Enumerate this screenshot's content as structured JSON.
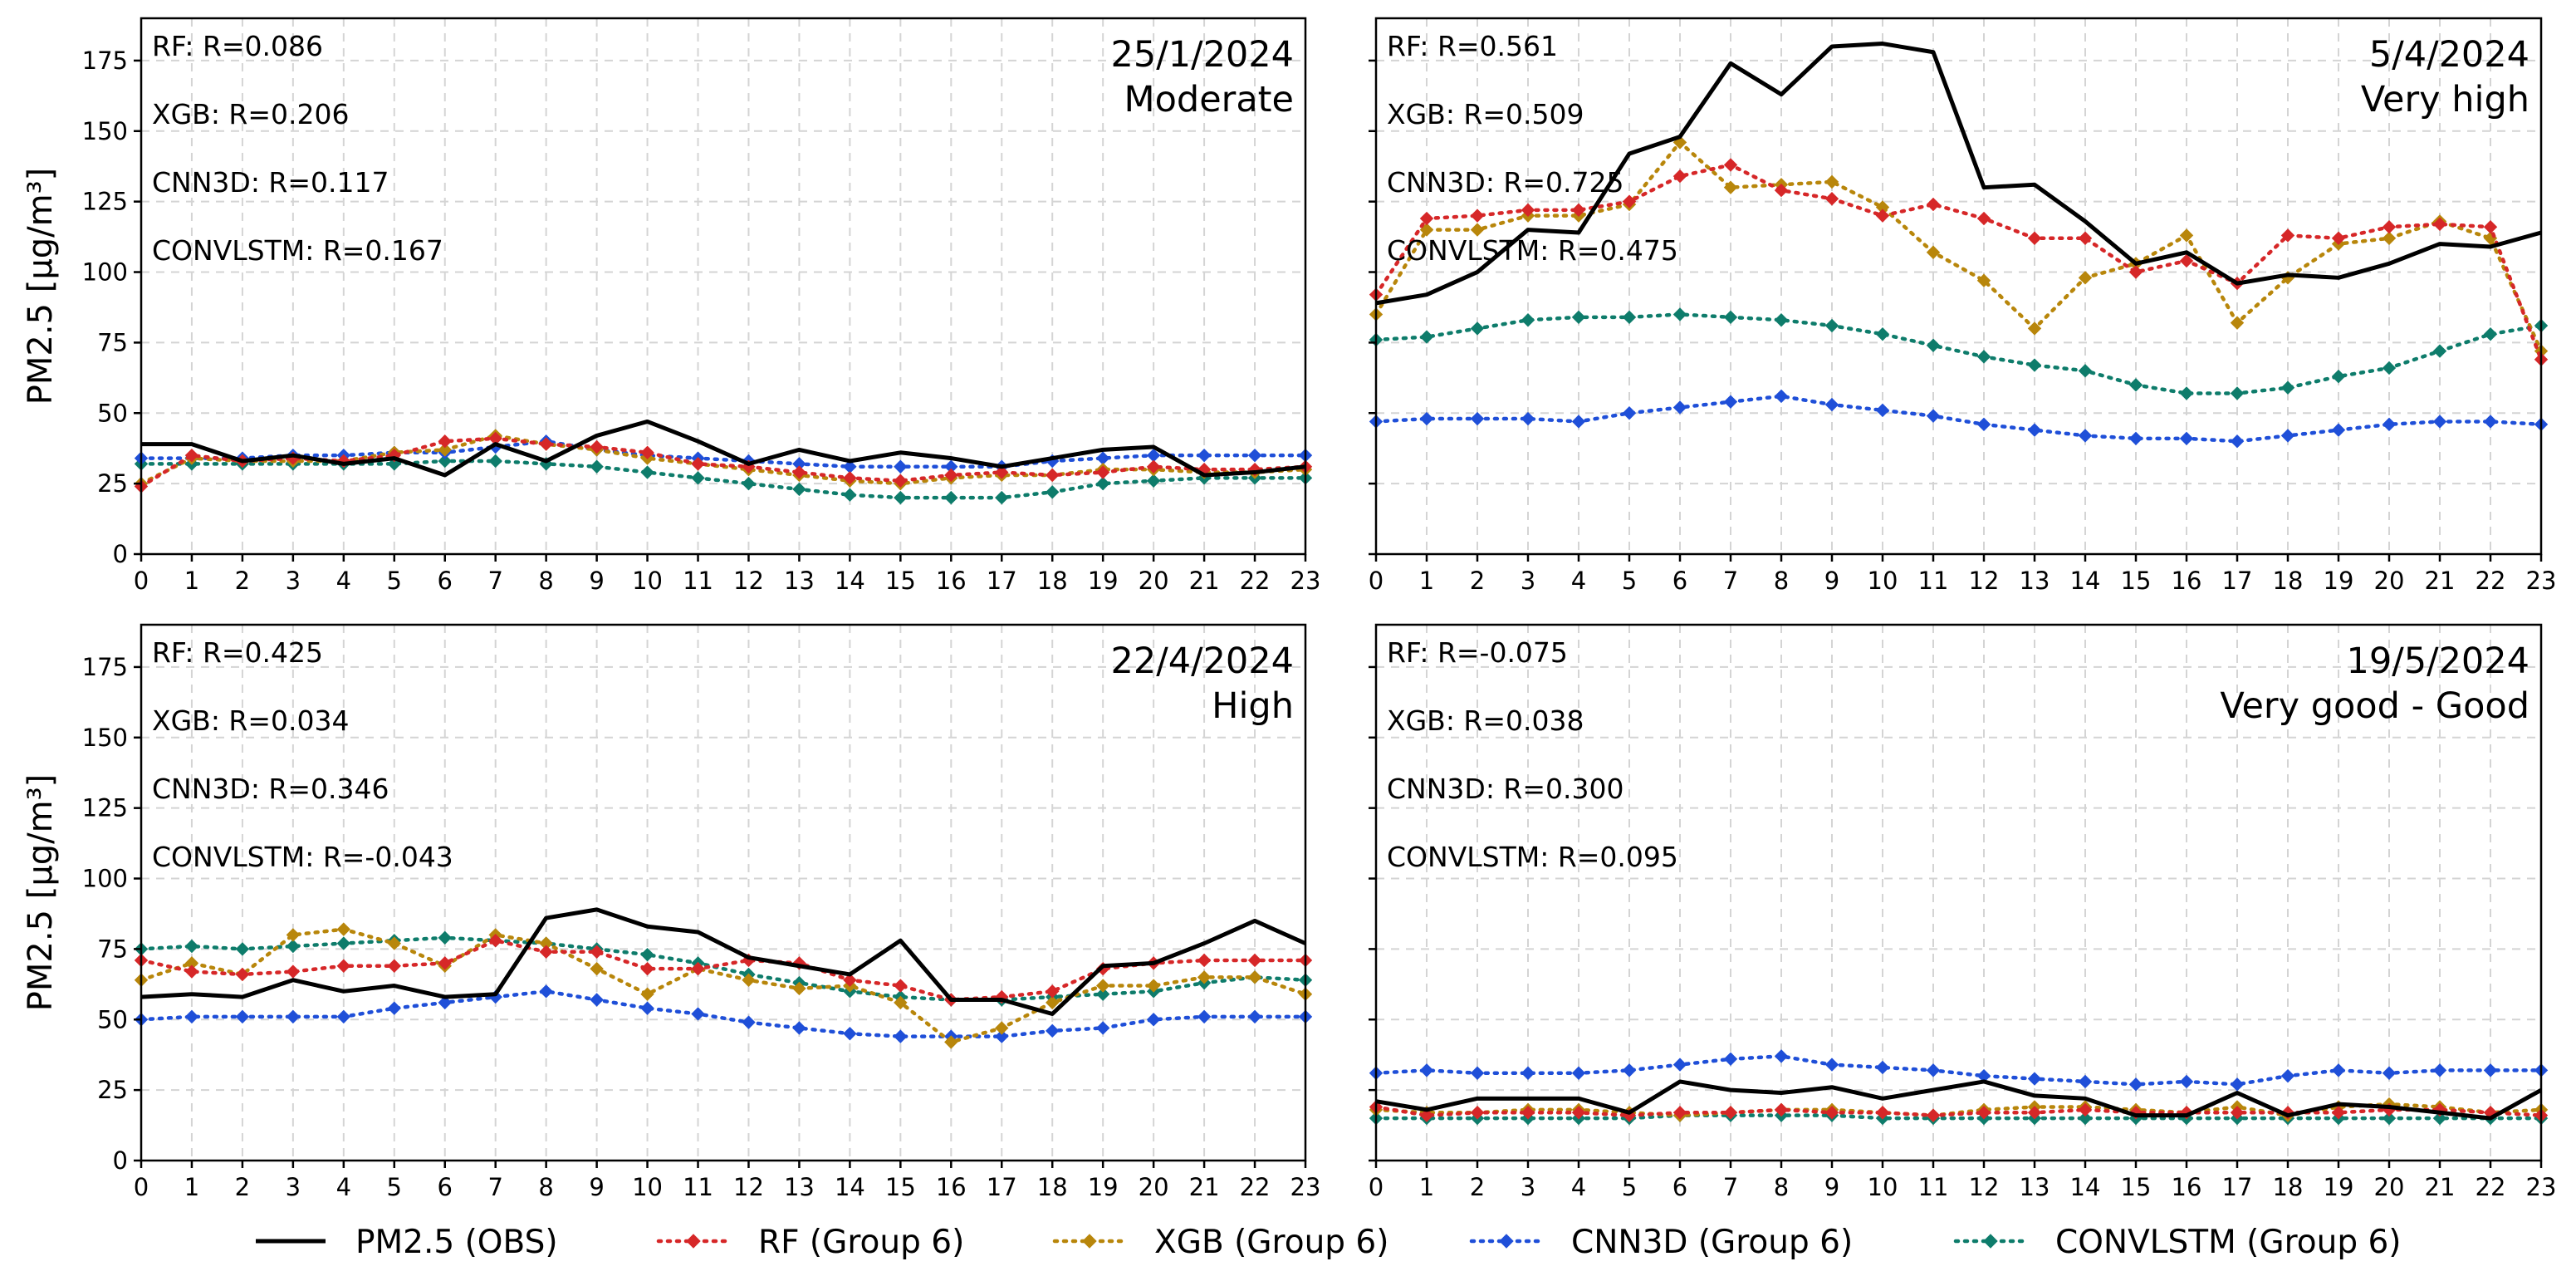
{
  "chart_data": {
    "type": "line",
    "ylabel": "PM2.5 [µg/m³]",
    "xlim": [
      0,
      23
    ],
    "ylim": [
      0,
      190
    ],
    "xticks": [
      0,
      1,
      2,
      3,
      4,
      5,
      6,
      7,
      8,
      9,
      10,
      11,
      12,
      13,
      14,
      15,
      16,
      17,
      18,
      19,
      20,
      21,
      22,
      23
    ],
    "yticks": [
      0,
      25,
      50,
      75,
      100,
      125,
      150,
      175
    ],
    "grid": true,
    "legend_position": "bottom",
    "legend": [
      {
        "key": "obs",
        "label": "PM2.5 (OBS)",
        "color": "#000000",
        "style": "solid",
        "marker": "none"
      },
      {
        "key": "rf",
        "label": "RF (Group 6)",
        "color": "#d62728",
        "style": "dotted",
        "marker": "diamond"
      },
      {
        "key": "xgb",
        "label": "XGB (Group 6)",
        "color": "#b8860b",
        "style": "dotted",
        "marker": "diamond"
      },
      {
        "key": "cnn3d",
        "label": "CNN3D (Group 6)",
        "color": "#1f4fd8",
        "style": "dotted",
        "marker": "diamond"
      },
      {
        "key": "convlstm",
        "label": "CONVLSTM (Group 6)",
        "color": "#0e7c6b",
        "style": "dotted",
        "marker": "diamond"
      }
    ],
    "panels": [
      {
        "date": "25/1/2024",
        "category": "Moderate",
        "metrics": [
          "RF: R=0.086",
          "XGB: R=0.206",
          "CNN3D: R=0.117",
          "CONVLSTM: R=0.167"
        ],
        "series": {
          "obs": [
            39,
            39,
            33,
            35,
            32,
            34,
            28,
            39,
            33,
            42,
            47,
            40,
            32,
            37,
            33,
            36,
            34,
            31,
            34,
            37,
            38,
            28,
            29,
            31
          ],
          "rf": [
            24,
            35,
            33,
            34,
            33,
            35,
            40,
            41,
            39,
            38,
            36,
            32,
            31,
            29,
            27,
            26,
            28,
            29,
            28,
            29,
            31,
            30,
            30,
            31
          ],
          "xgb": [
            25,
            34,
            33,
            33,
            33,
            36,
            37,
            42,
            39,
            37,
            34,
            32,
            30,
            28,
            26,
            25,
            27,
            28,
            28,
            30,
            30,
            29,
            29,
            30
          ],
          "cnn3d": [
            34,
            34,
            34,
            35,
            35,
            36,
            36,
            38,
            40,
            37,
            35,
            34,
            33,
            32,
            31,
            31,
            31,
            31,
            33,
            34,
            35,
            35,
            35,
            35
          ],
          "convlstm": [
            32,
            32,
            32,
            32,
            32,
            32,
            33,
            33,
            32,
            31,
            29,
            27,
            25,
            23,
            21,
            20,
            20,
            20,
            22,
            25,
            26,
            27,
            27,
            27
          ]
        }
      },
      {
        "date": "5/4/2024",
        "category": "Very high",
        "metrics": [
          "RF: R=0.561",
          "XGB: R=0.509",
          "CNN3D: R=0.725",
          "CONVLSTM: R=0.475"
        ],
        "series": {
          "obs": [
            89,
            92,
            100,
            115,
            114,
            142,
            148,
            174,
            163,
            180,
            181,
            178,
            130,
            131,
            118,
            103,
            107,
            96,
            99,
            98,
            103,
            110,
            109,
            114
          ],
          "rf": [
            92,
            119,
            120,
            122,
            122,
            125,
            134,
            138,
            129,
            126,
            120,
            124,
            119,
            112,
            112,
            100,
            104,
            96,
            113,
            112,
            116,
            117,
            116,
            69
          ],
          "xgb": [
            85,
            115,
            115,
            120,
            120,
            124,
            146,
            130,
            131,
            132,
            123,
            107,
            97,
            80,
            98,
            103,
            113,
            82,
            98,
            110,
            112,
            118,
            112,
            72
          ],
          "cnn3d": [
            47,
            48,
            48,
            48,
            47,
            50,
            52,
            54,
            56,
            53,
            51,
            49,
            46,
            44,
            42,
            41,
            41,
            40,
            42,
            44,
            46,
            47,
            47,
            46
          ],
          "convlstm": [
            76,
            77,
            80,
            83,
            84,
            84,
            85,
            84,
            83,
            81,
            78,
            74,
            70,
            67,
            65,
            60,
            57,
            57,
            59,
            63,
            66,
            72,
            78,
            81
          ]
        }
      },
      {
        "date": "22/4/2024",
        "category": "High",
        "metrics": [
          "RF: R=0.425",
          "XGB: R=0.034",
          "CNN3D: R=0.346",
          "CONVLSTM: R=-0.043"
        ],
        "series": {
          "obs": [
            58,
            59,
            58,
            64,
            60,
            62,
            58,
            59,
            86,
            89,
            83,
            81,
            72,
            69,
            66,
            78,
            57,
            57,
            52,
            69,
            70,
            77,
            85,
            77
          ],
          "rf": [
            71,
            67,
            66,
            67,
            69,
            69,
            70,
            78,
            74,
            74,
            68,
            68,
            71,
            70,
            64,
            62,
            57,
            58,
            60,
            68,
            70,
            71,
            71,
            71
          ],
          "xgb": [
            64,
            70,
            66,
            80,
            82,
            77,
            69,
            80,
            77,
            68,
            59,
            68,
            64,
            61,
            62,
            56,
            42,
            47,
            56,
            62,
            62,
            65,
            65,
            59
          ],
          "cnn3d": [
            50,
            51,
            51,
            51,
            51,
            54,
            56,
            58,
            60,
            57,
            54,
            52,
            49,
            47,
            45,
            44,
            44,
            44,
            46,
            47,
            50,
            51,
            51,
            51
          ],
          "convlstm": [
            75,
            76,
            75,
            76,
            77,
            78,
            79,
            78,
            77,
            75,
            73,
            70,
            66,
            63,
            60,
            58,
            57,
            57,
            58,
            59,
            60,
            63,
            65,
            64
          ]
        }
      },
      {
        "date": "19/5/2024",
        "category": "Very good - Good",
        "metrics": [
          "RF: R=-0.075",
          "XGB: R=0.038",
          "CNN3D: R=0.300",
          "CONVLSTM: R=0.095"
        ],
        "series": {
          "obs": [
            21,
            18,
            22,
            22,
            22,
            17,
            28,
            25,
            24,
            26,
            22,
            25,
            28,
            23,
            22,
            16,
            16,
            24,
            16,
            20,
            19,
            17,
            15,
            25
          ],
          "rf": [
            19,
            16,
            17,
            17,
            17,
            16,
            17,
            17,
            18,
            17,
            17,
            16,
            17,
            17,
            18,
            17,
            17,
            17,
            17,
            17,
            18,
            18,
            17,
            16
          ],
          "xgb": [
            18,
            17,
            17,
            18,
            18,
            17,
            16,
            17,
            18,
            18,
            17,
            16,
            18,
            19,
            19,
            18,
            17,
            19,
            16,
            19,
            20,
            19,
            17,
            18
          ],
          "cnn3d": [
            31,
            32,
            31,
            31,
            31,
            32,
            34,
            36,
            37,
            34,
            33,
            32,
            30,
            29,
            28,
            27,
            28,
            27,
            30,
            32,
            31,
            32,
            32,
            32
          ],
          "convlstm": [
            15,
            15,
            15,
            15,
            15,
            15,
            16,
            16,
            16,
            16,
            15,
            15,
            15,
            15,
            15,
            15,
            15,
            15,
            15,
            15,
            15,
            15,
            15,
            15
          ]
        }
      }
    ]
  }
}
